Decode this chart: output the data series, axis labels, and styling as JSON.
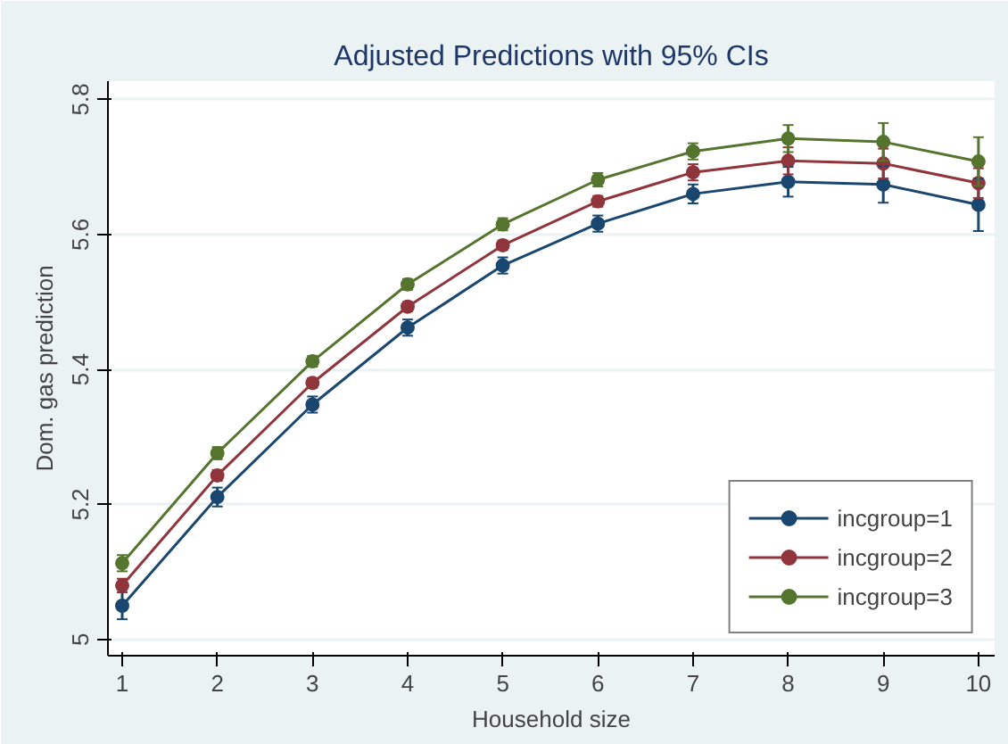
{
  "chart_data": {
    "type": "line",
    "title": "Adjusted Predictions with 95% CIs",
    "xlabel": "Household size",
    "ylabel": "Dom. gas prediction",
    "x": [
      1,
      2,
      3,
      4,
      5,
      6,
      7,
      8,
      9,
      10
    ],
    "xlim": [
      0.85,
      10.17
    ],
    "ylim": [
      4.976,
      5.827
    ],
    "xticks": [
      1,
      2,
      3,
      4,
      5,
      6,
      7,
      8,
      9,
      10
    ],
    "yticks": [
      5,
      5.2,
      5.4,
      5.6,
      5.8
    ],
    "grid": "y",
    "legend": "bottom right",
    "marker": "circle",
    "line_style": "solid",
    "series": [
      {
        "name": "incgroup=1",
        "color": "#1a476f",
        "values": [
          5.05,
          5.211,
          5.348,
          5.462,
          5.554,
          5.616,
          5.66,
          5.678,
          5.674,
          5.644
        ],
        "errors": [
          0.02,
          0.014,
          0.012,
          0.012,
          0.012,
          0.012,
          0.014,
          0.022,
          0.027,
          0.039
        ]
      },
      {
        "name": "incgroup=2",
        "color": "#90353b",
        "values": [
          5.08,
          5.243,
          5.38,
          5.493,
          5.584,
          5.649,
          5.692,
          5.709,
          5.705,
          5.676
        ],
        "errors": [
          0.01,
          0.008,
          0.007,
          0.007,
          0.007,
          0.008,
          0.012,
          0.02,
          0.022,
          0.022
        ]
      },
      {
        "name": "incgroup=3",
        "color": "#55752f",
        "values": [
          5.113,
          5.276,
          5.412,
          5.526,
          5.615,
          5.681,
          5.723,
          5.742,
          5.737,
          5.708
        ],
        "errors": [
          0.012,
          0.009,
          0.008,
          0.008,
          0.009,
          0.01,
          0.012,
          0.02,
          0.028,
          0.036
        ]
      }
    ]
  }
}
